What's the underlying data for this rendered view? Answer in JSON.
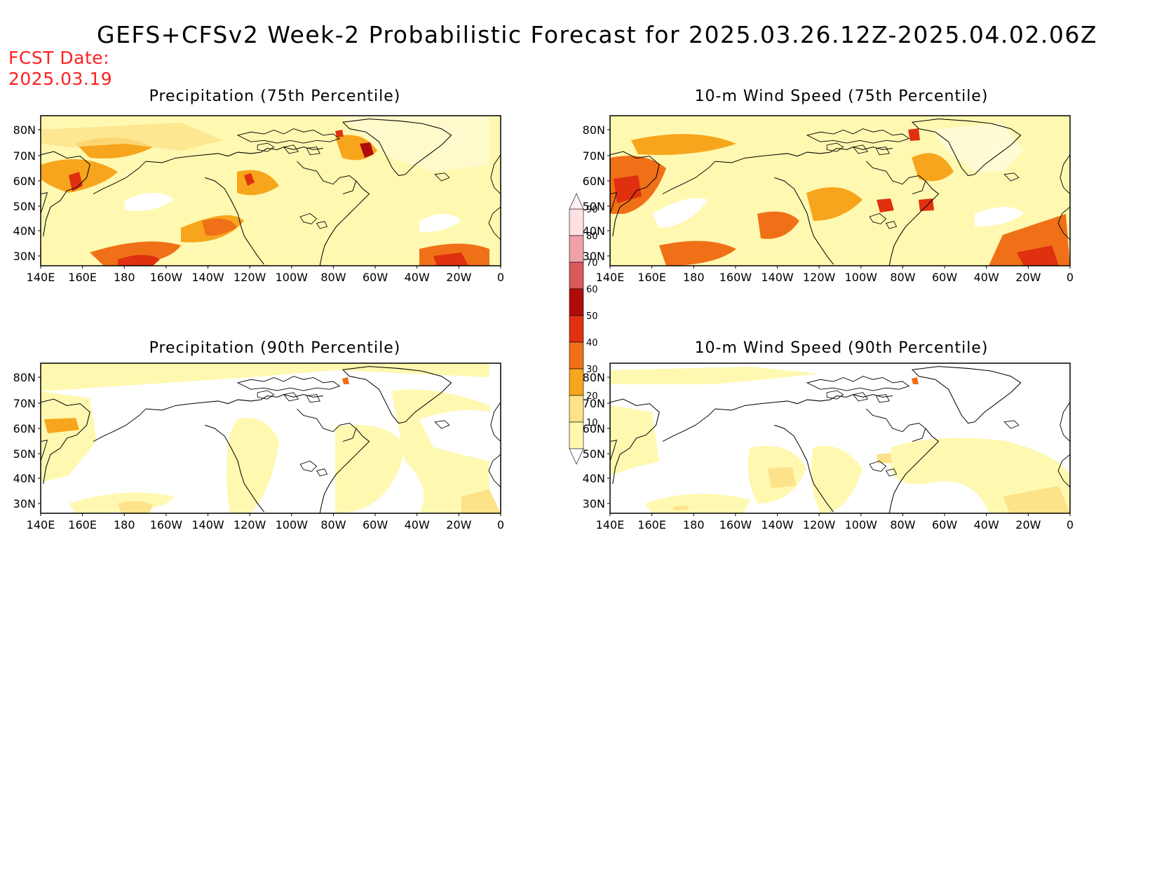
{
  "header": {
    "title": "GEFS+CFSv2 Week-2 Probabilistic Forecast for 2025.03.26.12Z-2025.04.02.06Z",
    "fcst_label": "FCST Date:",
    "fcst_date": "2025.03.19"
  },
  "panels": [
    {
      "id": "precip-75",
      "title": "Precipitation (75th Percentile)"
    },
    {
      "id": "wind-75",
      "title": "10-m Wind Speed (75th Percentile)"
    },
    {
      "id": "precip-90",
      "title": "Precipitation (90th Percentile)"
    },
    {
      "id": "wind-90",
      "title": "10-m Wind Speed (90th Percentile)"
    }
  ],
  "axes": {
    "lat_labels": [
      "80N",
      "70N",
      "60N",
      "50N",
      "40N",
      "30N"
    ],
    "lon_labels": [
      "140E",
      "160E",
      "180",
      "160W",
      "140W",
      "120W",
      "100W",
      "80W",
      "60W",
      "40W",
      "20W",
      "0"
    ]
  },
  "colorbar": {
    "levels": [
      "10",
      "20",
      "30",
      "40",
      "50",
      "60",
      "70",
      "80",
      "90"
    ],
    "colors": [
      "#fff8b0",
      "#fde28a",
      "#f7a51c",
      "#f07018",
      "#e03010",
      "#b00c0c",
      "#d85a5a",
      "#f0a0a8",
      "#ffe0e4"
    ]
  }
}
